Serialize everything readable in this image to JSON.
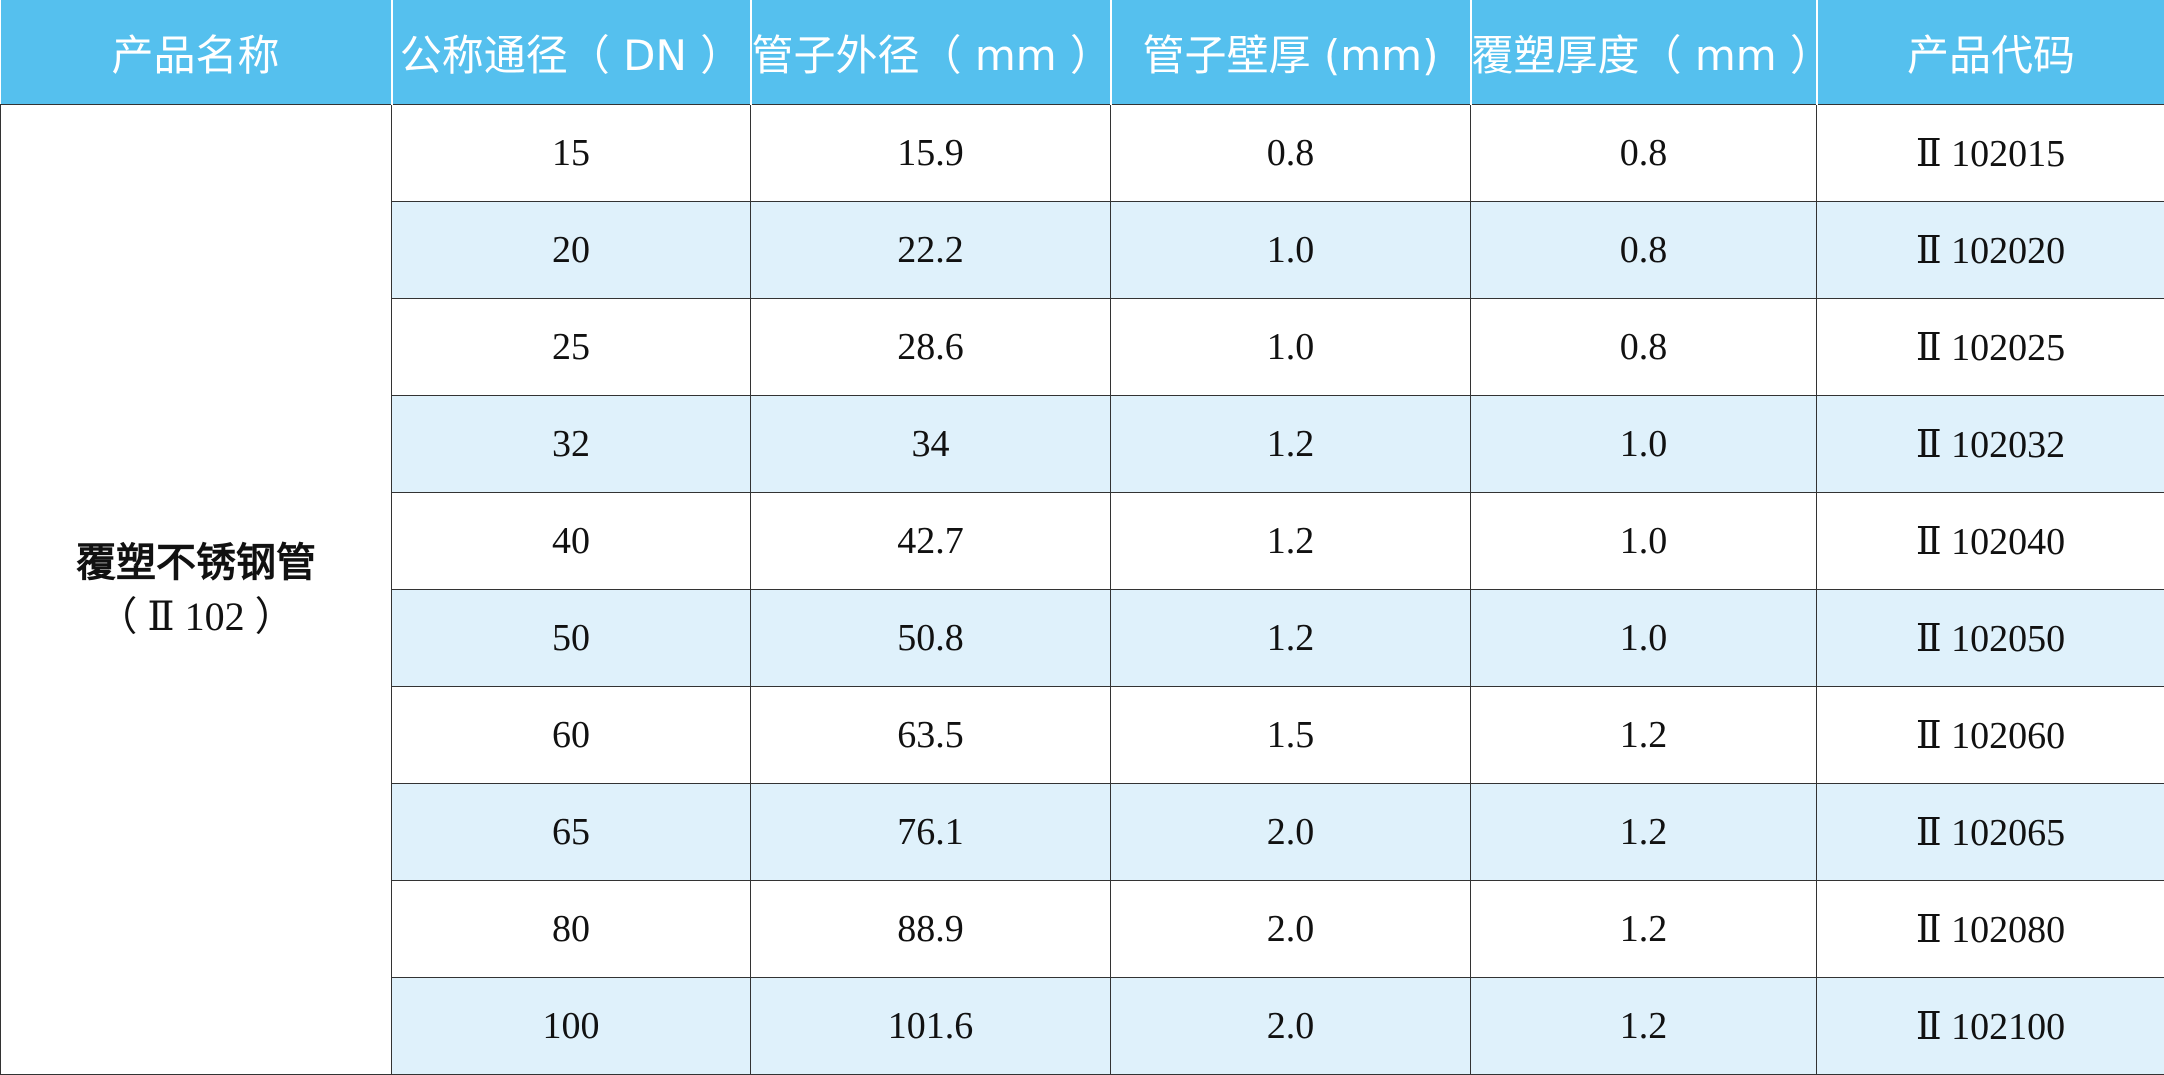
{
  "table": {
    "headers": [
      "产品名称",
      "公称通径（ DN ）",
      "管子外径（ mm ）",
      "管子壁厚 (mm)",
      "覆塑厚度（ mm ）",
      "产品代码"
    ],
    "product_name": "覆塑不锈钢管",
    "product_code": "（ Ⅱ 102 ）",
    "rows": [
      [
        "15",
        "15.9",
        "0.8",
        "0.8",
        "Ⅱ 102015"
      ],
      [
        "20",
        "22.2",
        "1.0",
        "0.8",
        "Ⅱ 102020"
      ],
      [
        "25",
        "28.6",
        "1.0",
        "0.8",
        "Ⅱ 102025"
      ],
      [
        "32",
        "34",
        "1.2",
        "1.0",
        "Ⅱ 102032"
      ],
      [
        "40",
        "42.7",
        "1.2",
        "1.0",
        "Ⅱ 102040"
      ],
      [
        "50",
        "50.8",
        "1.2",
        "1.0",
        "Ⅱ 102050"
      ],
      [
        "60",
        "63.5",
        "1.5",
        "1.2",
        "Ⅱ 102060"
      ],
      [
        "65",
        "76.1",
        "2.0",
        "1.2",
        "Ⅱ 102065"
      ],
      [
        "80",
        "88.9",
        "2.0",
        "1.2",
        "Ⅱ 102080"
      ],
      [
        "100",
        "101.6",
        "2.0",
        "1.2",
        "Ⅱ 102100"
      ]
    ]
  }
}
